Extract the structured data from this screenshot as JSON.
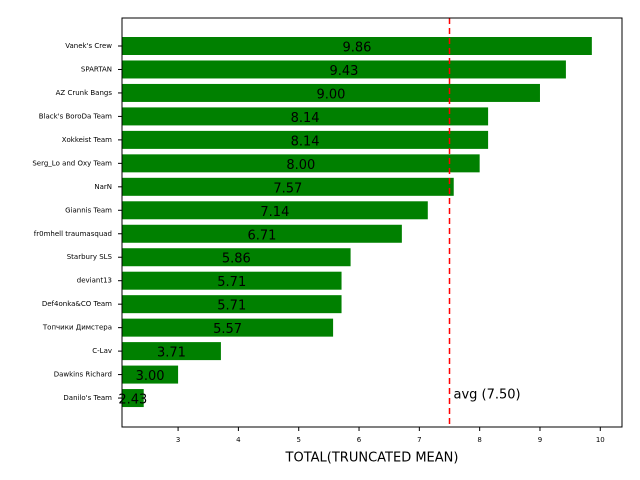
{
  "chart_data": {
    "type": "barh",
    "categories": [
      "Vanek's Crew",
      "SPARTAN",
      "AZ Crunk Bangs",
      "Black's BoroDa Team",
      "Xokkeist Team",
      "Serg_Lo and Oxy Team",
      "NarN",
      "Giannis Team",
      "fr0mhell traumasquad",
      "Starbury SLS",
      "deviant13",
      "Def4onka&CO Team",
      "Топчики Димстера",
      "C-Lav",
      "Dawkins Richard",
      "Danilo's Team"
    ],
    "values": [
      9.86,
      9.43,
      9.0,
      8.14,
      8.14,
      8.0,
      7.57,
      7.14,
      6.71,
      5.86,
      5.71,
      5.71,
      5.57,
      3.71,
      3.0,
      2.43
    ],
    "value_labels": [
      "9.86",
      "9.43",
      "9.00",
      "8.14",
      "8.14",
      "8.00",
      "7.57",
      "7.14",
      "6.71",
      "5.86",
      "5.71",
      "5.71",
      "5.57",
      "3.71",
      "3.00",
      "2.43"
    ],
    "color": "#008000",
    "xlabel": "TOTAL(TRUNCATED MEAN)",
    "xlim": [
      2.07,
      10.36
    ],
    "xticks": [
      3,
      4,
      5,
      6,
      7,
      8,
      9,
      10
    ],
    "reference_line": {
      "value": 7.5,
      "label": "avg (7.50)",
      "color": "#ff0000"
    }
  }
}
